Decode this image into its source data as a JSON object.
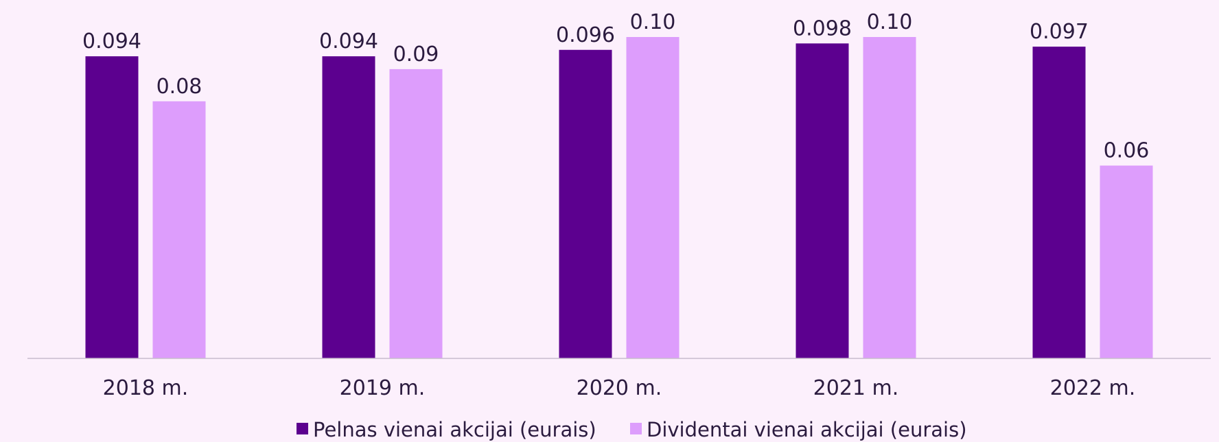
{
  "colors": {
    "background": "#fcf0fc",
    "axis": "#c8bccd",
    "text": "#2b1b3f"
  },
  "chart_data": {
    "type": "bar",
    "categories": [
      "2018 m.",
      "2019 m.",
      "2020 m.",
      "2021 m.",
      "2022 m."
    ],
    "series": [
      {
        "name": "Pelnas vienai akcijai (eurais)",
        "color": "#5c008f",
        "values": [
          0.094,
          0.094,
          0.096,
          0.098,
          0.097
        ],
        "labels": [
          "0.094",
          "0.094",
          "0.096",
          "0.098",
          "0.097"
        ]
      },
      {
        "name": "Dividentai vienai akcijai (eurais)",
        "color": "#dd9dfc",
        "values": [
          0.08,
          0.09,
          0.1,
          0.1,
          0.06
        ],
        "labels": [
          "0.08",
          "0.09",
          "0.10",
          "0.10",
          "0.06"
        ]
      }
    ],
    "ylim": [
      0,
      0.1
    ],
    "grid": false,
    "legend_position": "bottom-center"
  }
}
